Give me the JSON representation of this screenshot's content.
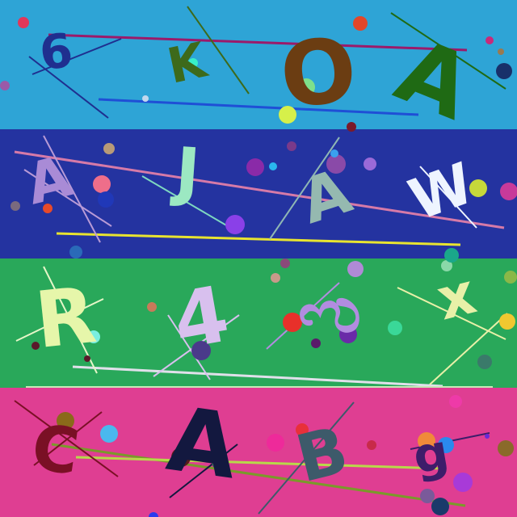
{
  "bands": [
    {
      "color": "#2ea4d6",
      "glyphs": [
        {
          "text": "6",
          "color": "#1f2f8f"
        },
        {
          "text": "K",
          "color": "#3d6a1b"
        },
        {
          "text": "O",
          "color": "#6b3d12"
        },
        {
          "text": "A",
          "color": "#1f6a14"
        }
      ]
    },
    {
      "color": "#2433a0",
      "glyphs": [
        {
          "text": "A",
          "color": "#a98bd6"
        },
        {
          "text": "J",
          "color": "#9ce8c2"
        },
        {
          "text": "A",
          "color": "#95b9b0"
        },
        {
          "text": "W",
          "color": "#eef4ff"
        }
      ]
    },
    {
      "color": "#29a85a",
      "glyphs": [
        {
          "text": "R",
          "color": "#e6f6aa"
        },
        {
          "text": "4",
          "color": "#d8c0ee"
        },
        {
          "text": "ಌ",
          "color": "#b28ce0"
        },
        {
          "text": "x",
          "color": "#e8f0a8"
        }
      ]
    },
    {
      "color": "#df3e92",
      "glyphs": [
        {
          "text": "C",
          "color": "#7a1025"
        },
        {
          "text": "A",
          "color": "#13183f"
        },
        {
          "text": "B",
          "color": "#3d5a6a"
        },
        {
          "text": "g",
          "color": "#3d1d6a"
        }
      ]
    }
  ]
}
